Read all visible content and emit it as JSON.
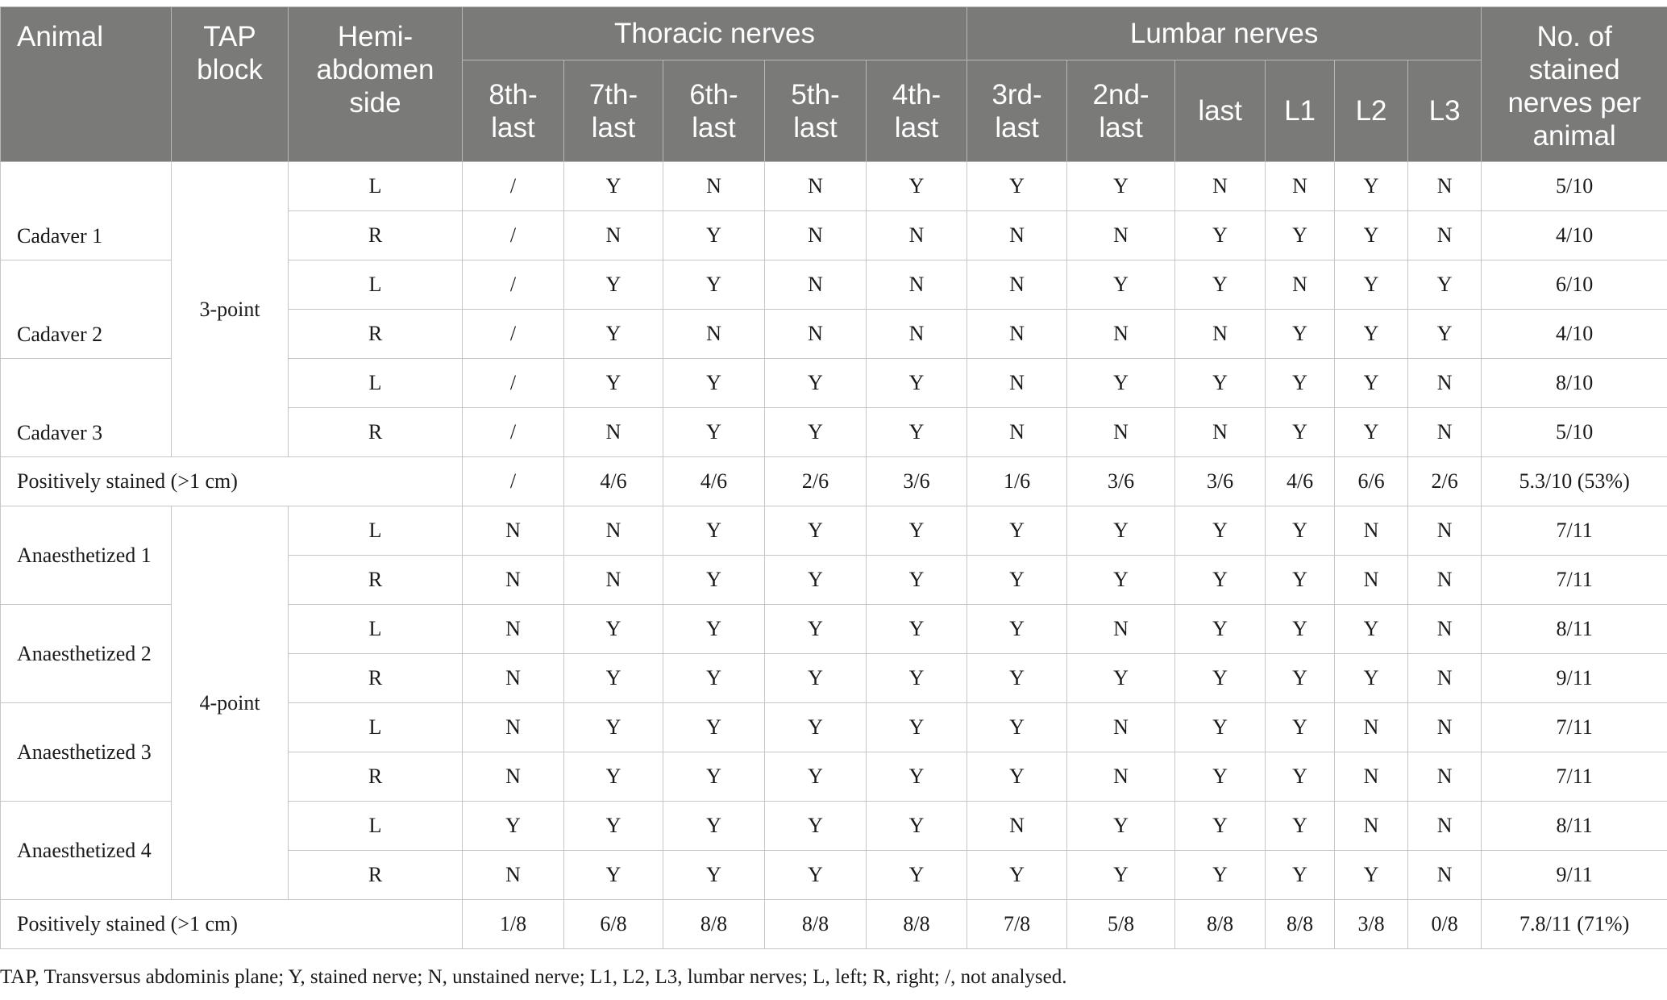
{
  "header": {
    "animal": "Animal",
    "tap_block": "TAP block",
    "hemi_side": "Hemi-abdomen side",
    "thoracic_group": "Thoracic nerves",
    "lumbar_group": "Lumbar nerves",
    "count_col": "No. of stained nerves per animal",
    "nerves": [
      "8th-last",
      "7th-last",
      "6th-last",
      "5th-last",
      "4th-last",
      "3rd-last",
      "2nd-last",
      "last",
      "L1",
      "L2",
      "L3"
    ]
  },
  "blocks": [
    {
      "tap": "3-point",
      "animals": [
        {
          "name": "Cadaver 1",
          "rows": [
            {
              "side": "L",
              "vals": [
                "/",
                "Y",
                "N",
                "N",
                "Y",
                "Y",
                "Y",
                "N",
                "N",
                "Y",
                "N"
              ],
              "count": "5/10"
            },
            {
              "side": "R",
              "vals": [
                "/",
                "N",
                "Y",
                "N",
                "N",
                "N",
                "N",
                "Y",
                "Y",
                "Y",
                "N"
              ],
              "count": "4/10"
            }
          ]
        },
        {
          "name": "Cadaver 2",
          "rows": [
            {
              "side": "L",
              "vals": [
                "/",
                "Y",
                "Y",
                "N",
                "N",
                "N",
                "Y",
                "Y",
                "N",
                "Y",
                "Y"
              ],
              "count": "6/10"
            },
            {
              "side": "R",
              "vals": [
                "/",
                "Y",
                "N",
                "N",
                "N",
                "N",
                "N",
                "N",
                "Y",
                "Y",
                "Y"
              ],
              "count": "4/10"
            }
          ]
        },
        {
          "name": "Cadaver 3",
          "rows": [
            {
              "side": "L",
              "vals": [
                "/",
                "Y",
                "Y",
                "Y",
                "Y",
                "N",
                "Y",
                "Y",
                "Y",
                "Y",
                "N"
              ],
              "count": "8/10"
            },
            {
              "side": "R",
              "vals": [
                "/",
                "N",
                "Y",
                "Y",
                "Y",
                "N",
                "N",
                "N",
                "Y",
                "Y",
                "N"
              ],
              "count": "5/10"
            }
          ]
        }
      ],
      "summary": {
        "label": "Positively stained (>1 cm)",
        "vals": [
          "/",
          "4/6",
          "4/6",
          "2/6",
          "3/6",
          "1/6",
          "3/6",
          "3/6",
          "4/6",
          "6/6",
          "2/6"
        ],
        "count": "5.3/10 (53%)"
      }
    },
    {
      "tap": "4-point",
      "animals": [
        {
          "name": "Anaesthetized 1",
          "rows": [
            {
              "side": "L",
              "vals": [
                "N",
                "N",
                "Y",
                "Y",
                "Y",
                "Y",
                "Y",
                "Y",
                "Y",
                "N",
                "N"
              ],
              "count": "7/11"
            },
            {
              "side": "R",
              "vals": [
                "N",
                "N",
                "Y",
                "Y",
                "Y",
                "Y",
                "Y",
                "Y",
                "Y",
                "N",
                "N"
              ],
              "count": "7/11"
            }
          ]
        },
        {
          "name": "Anaesthetized 2",
          "rows": [
            {
              "side": "L",
              "vals": [
                "N",
                "Y",
                "Y",
                "Y",
                "Y",
                "Y",
                "N",
                "Y",
                "Y",
                "Y",
                "N"
              ],
              "count": "8/11"
            },
            {
              "side": "R",
              "vals": [
                "N",
                "Y",
                "Y",
                "Y",
                "Y",
                "Y",
                "Y",
                "Y",
                "Y",
                "Y",
                "N"
              ],
              "count": "9/11"
            }
          ]
        },
        {
          "name": "Anaesthetized 3",
          "rows": [
            {
              "side": "L",
              "vals": [
                "N",
                "Y",
                "Y",
                "Y",
                "Y",
                "Y",
                "N",
                "Y",
                "Y",
                "N",
                "N"
              ],
              "count": "7/11"
            },
            {
              "side": "R",
              "vals": [
                "N",
                "Y",
                "Y",
                "Y",
                "Y",
                "Y",
                "N",
                "Y",
                "Y",
                "N",
                "N"
              ],
              "count": "7/11"
            }
          ]
        },
        {
          "name": "Anaesthetized 4",
          "rows": [
            {
              "side": "L",
              "vals": [
                "Y",
                "Y",
                "Y",
                "Y",
                "Y",
                "N",
                "Y",
                "Y",
                "Y",
                "N",
                "N"
              ],
              "count": "8/11"
            },
            {
              "side": "R",
              "vals": [
                "N",
                "Y",
                "Y",
                "Y",
                "Y",
                "Y",
                "Y",
                "Y",
                "Y",
                "Y",
                "N"
              ],
              "count": "9/11"
            }
          ]
        }
      ],
      "summary": {
        "label": "Positively stained (>1 cm)",
        "vals": [
          "1/8",
          "6/8",
          "8/8",
          "8/8",
          "8/8",
          "7/8",
          "5/8",
          "8/8",
          "8/8",
          "3/8",
          "0/8"
        ],
        "count": "7.8/11 (71%)"
      }
    }
  ],
  "footnote": "TAP, Transversus abdominis plane; Y, stained nerve; N, unstained nerve; L1, L2, L3, lumbar nerves; L, left; R, right; /, not analysed.",
  "colors": {
    "header_bg": "#7a7b79",
    "header_text": "#ffffff",
    "border": "#c6c6c6"
  }
}
